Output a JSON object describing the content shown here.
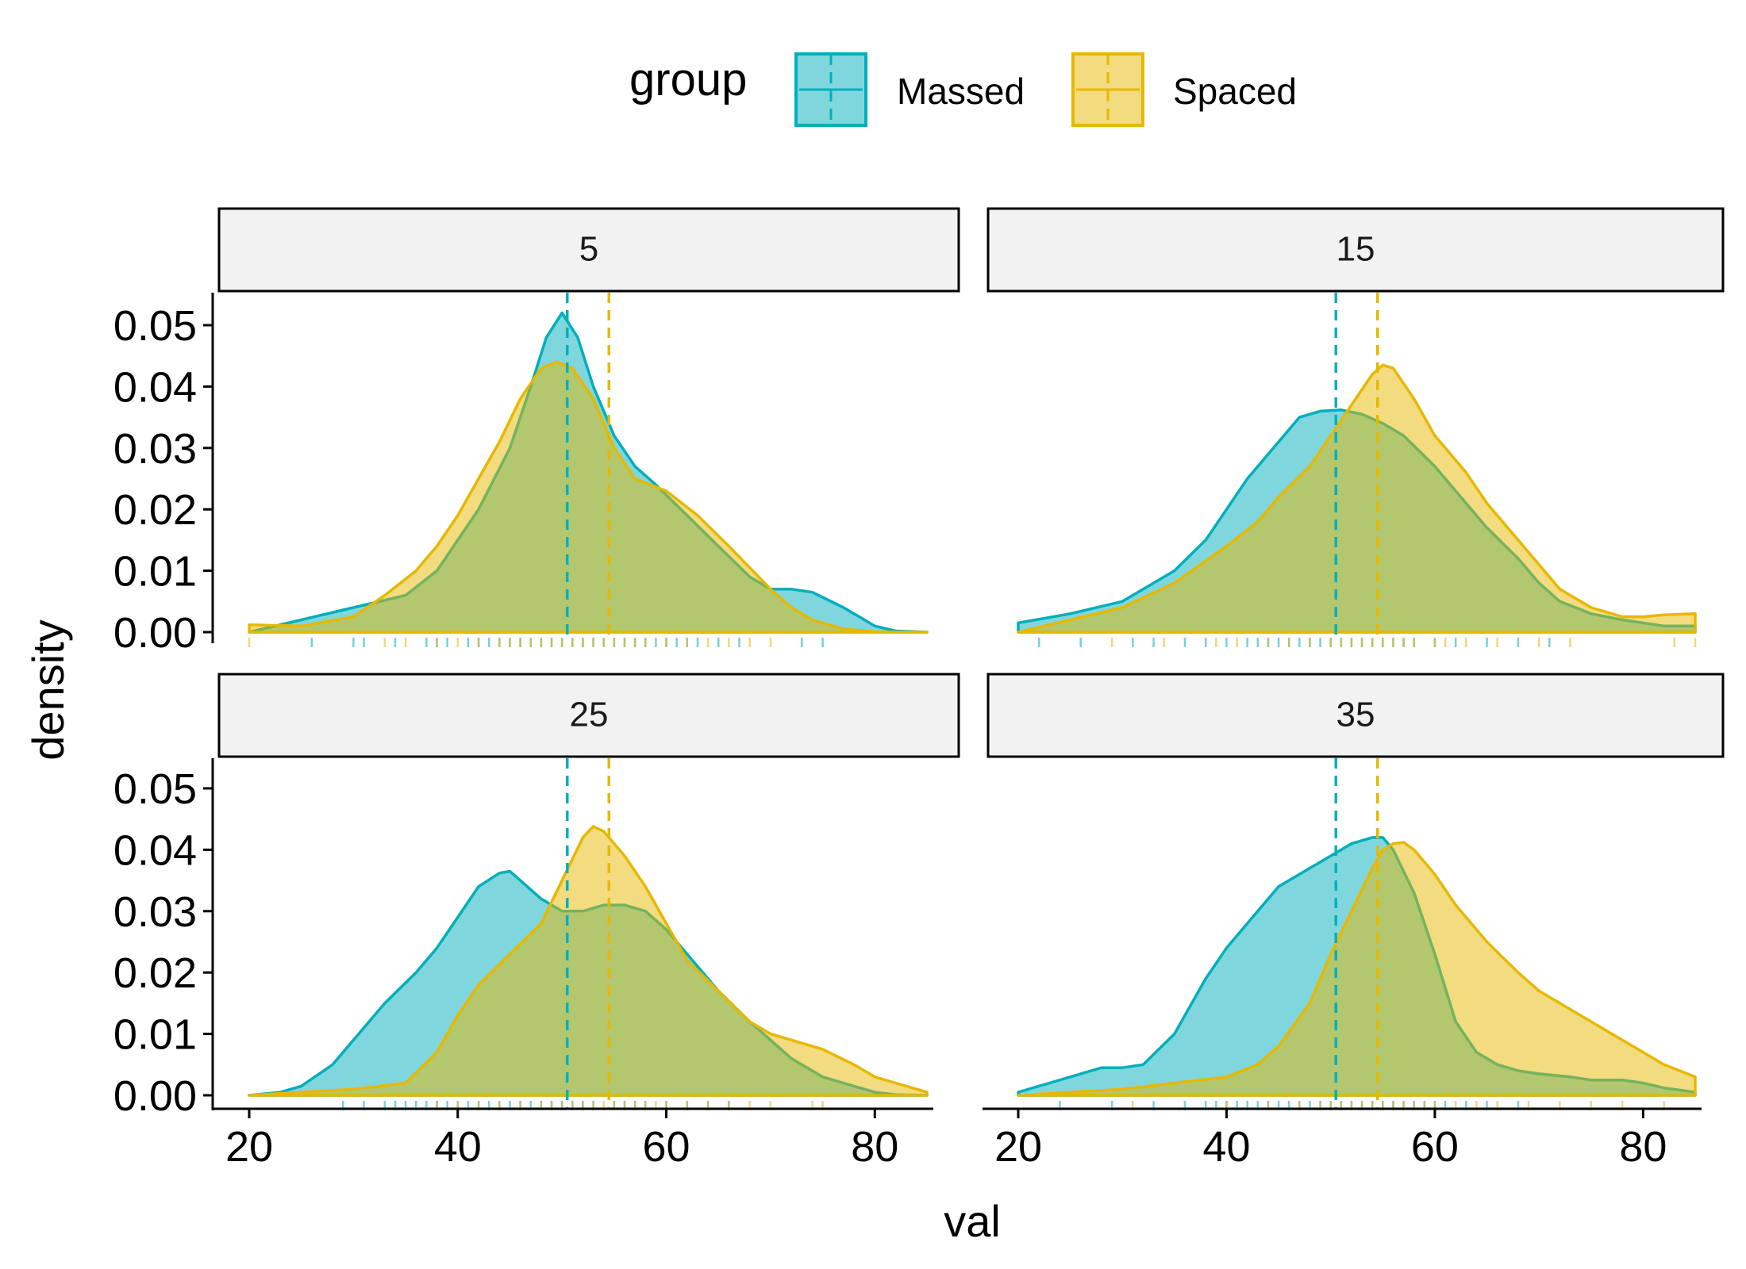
{
  "colors": {
    "massed": "#00AFBB",
    "spaced": "#E7B800",
    "strip_bg": "#F2F2F2",
    "axis": "#000000"
  },
  "chart_data": {
    "type": "area",
    "subtype": "density with rug and mean lines",
    "xlabel": "val",
    "ylabel": "density",
    "xlim": [
      20,
      85
    ],
    "ylim": [
      0,
      0.05
    ],
    "x_ticks": [
      20,
      40,
      60,
      80
    ],
    "y_ticks": [
      "0.00",
      "0.01",
      "0.02",
      "0.03",
      "0.04",
      "0.05"
    ],
    "grid": false,
    "legend": {
      "title": "group",
      "position": "top",
      "entries": [
        "Massed",
        "Spaced"
      ]
    },
    "facet_variable_levels": [
      "5",
      "15",
      "25",
      "35"
    ],
    "mean_lines": {
      "Massed": 50.5,
      "Spaced": 54.5
    },
    "panels": [
      {
        "label": "5",
        "series": [
          {
            "name": "Massed",
            "x": [
              20,
              25,
              30,
              35,
              38,
              40,
              42,
              45,
              47,
              48.5,
              50,
              51.5,
              53,
              55,
              57,
              59,
              62,
              65,
              68,
              70,
              72,
              74,
              77,
              80,
              82,
              85
            ],
            "density": [
              0.0,
              0.002,
              0.004,
              0.006,
              0.01,
              0.015,
              0.02,
              0.03,
              0.04,
              0.048,
              0.052,
              0.048,
              0.04,
              0.032,
              0.027,
              0.024,
              0.019,
              0.014,
              0.009,
              0.007,
              0.007,
              0.0065,
              0.004,
              0.001,
              0.0002,
              0.0
            ]
          },
          {
            "name": "Spaced",
            "x": [
              20,
              25,
              30,
              33,
              36,
              38,
              40,
              42,
              44,
              46,
              48,
              49.5,
              51,
              53,
              55,
              57,
              60,
              63,
              66,
              70,
              72,
              74,
              77,
              80,
              82,
              85
            ],
            "density": [
              0.0012,
              0.001,
              0.0025,
              0.006,
              0.01,
              0.014,
              0.019,
              0.025,
              0.031,
              0.038,
              0.043,
              0.044,
              0.043,
              0.038,
              0.03,
              0.025,
              0.023,
              0.019,
              0.014,
              0.007,
              0.004,
              0.002,
              0.0005,
              0.0001,
              0.0,
              0.0
            ]
          }
        ]
      },
      {
        "label": "15",
        "series": [
          {
            "name": "Massed",
            "x": [
              20,
              25,
              30,
              35,
              38,
              40,
              42,
              45,
              47,
              49,
              51,
              53,
              55,
              57,
              60,
              63,
              65,
              68,
              70,
              72,
              75,
              78,
              80,
              82,
              85
            ],
            "density": [
              0.0015,
              0.003,
              0.005,
              0.01,
              0.015,
              0.02,
              0.025,
              0.031,
              0.035,
              0.036,
              0.0362,
              0.0355,
              0.034,
              0.032,
              0.027,
              0.021,
              0.017,
              0.012,
              0.008,
              0.005,
              0.003,
              0.002,
              0.0015,
              0.001,
              0.001
            ]
          },
          {
            "name": "Spaced",
            "x": [
              20,
              25,
              30,
              35,
              40,
              43,
              45,
              48,
              50,
              52,
              54,
              55,
              56,
              58,
              60,
              63,
              65,
              68,
              70,
              72,
              75,
              78,
              80,
              82,
              85
            ],
            "density": [
              0.0,
              0.002,
              0.004,
              0.008,
              0.014,
              0.018,
              0.022,
              0.027,
              0.032,
              0.037,
              0.042,
              0.0435,
              0.043,
              0.038,
              0.032,
              0.026,
              0.021,
              0.015,
              0.011,
              0.007,
              0.004,
              0.0025,
              0.0025,
              0.0028,
              0.003
            ]
          }
        ]
      },
      {
        "label": "25",
        "series": [
          {
            "name": "Massed",
            "x": [
              20,
              23,
              25,
              28,
              30,
              33,
              36,
              38,
              40,
              42,
              44,
              45,
              46,
              48,
              50,
              52,
              54,
              56,
              58,
              60,
              62,
              65,
              68,
              70,
              72,
              75,
              78,
              80,
              82,
              85
            ],
            "density": [
              0.0,
              0.0005,
              0.0015,
              0.005,
              0.009,
              0.015,
              0.02,
              0.024,
              0.029,
              0.034,
              0.0362,
              0.0365,
              0.035,
              0.032,
              0.03,
              0.03,
              0.031,
              0.031,
              0.03,
              0.027,
              0.023,
              0.017,
              0.012,
              0.009,
              0.006,
              0.003,
              0.0015,
              0.0005,
              0.0001,
              0.0
            ]
          },
          {
            "name": "Spaced",
            "x": [
              20,
              25,
              30,
              35,
              38,
              40,
              42,
              45,
              48,
              50,
              52,
              53,
              54,
              56,
              58,
              60,
              62,
              65,
              68,
              70,
              72,
              75,
              78,
              80,
              82,
              85
            ],
            "density": [
              0.0,
              0.0005,
              0.001,
              0.002,
              0.007,
              0.013,
              0.018,
              0.023,
              0.028,
              0.035,
              0.042,
              0.0438,
              0.043,
              0.039,
              0.034,
              0.028,
              0.022,
              0.017,
              0.012,
              0.01,
              0.009,
              0.0075,
              0.005,
              0.003,
              0.002,
              0.0005
            ]
          }
        ]
      },
      {
        "label": "35",
        "series": [
          {
            "name": "Massed",
            "x": [
              20,
              23,
              25,
              28,
              30,
              32,
              35,
              38,
              40,
              43,
              45,
              48,
              50,
              52,
              54,
              55,
              56,
              58,
              60,
              62,
              64,
              66,
              68,
              70,
              73,
              75,
              78,
              80,
              82,
              85
            ],
            "density": [
              0.0005,
              0.002,
              0.003,
              0.0045,
              0.0045,
              0.005,
              0.01,
              0.019,
              0.024,
              0.03,
              0.034,
              0.037,
              0.039,
              0.041,
              0.042,
              0.042,
              0.04,
              0.033,
              0.023,
              0.012,
              0.007,
              0.005,
              0.004,
              0.0035,
              0.003,
              0.0025,
              0.0025,
              0.002,
              0.0012,
              0.0005
            ]
          },
          {
            "name": "Spaced",
            "x": [
              20,
              25,
              30,
              35,
              40,
              43,
              45,
              48,
              50,
              52,
              54,
              55,
              56,
              57,
              58,
              60,
              62,
              65,
              68,
              70,
              72,
              75,
              78,
              80,
              82,
              85
            ],
            "density": [
              0.0,
              0.0005,
              0.001,
              0.002,
              0.003,
              0.005,
              0.008,
              0.015,
              0.023,
              0.03,
              0.037,
              0.04,
              0.041,
              0.0412,
              0.04,
              0.036,
              0.031,
              0.025,
              0.02,
              0.017,
              0.015,
              0.012,
              0.009,
              0.007,
              0.005,
              0.003
            ]
          }
        ]
      }
    ],
    "rug": [
      {
        "Massed": [
          26,
          30,
          31,
          34,
          37,
          38,
          39,
          41,
          42,
          43,
          44,
          45,
          46,
          47,
          48,
          49,
          50,
          51,
          52,
          53,
          54,
          55,
          56,
          57,
          58,
          59,
          60,
          61,
          62,
          63,
          65,
          67,
          73,
          75
        ],
        "Spaced": [
          20,
          33,
          35,
          38,
          40,
          42,
          44,
          45,
          46,
          47,
          48,
          49,
          50,
          51,
          52,
          53,
          54,
          55,
          56,
          57,
          58,
          60,
          62,
          64,
          66,
          68,
          70
        ]
      },
      {
        "Massed": [
          22,
          26,
          31,
          33,
          36,
          38,
          40,
          42,
          43,
          44,
          45,
          46,
          47,
          48,
          49,
          50,
          51,
          52,
          53,
          54,
          55,
          56,
          57,
          58,
          60,
          62,
          65,
          68,
          71
        ],
        "Spaced": [
          29,
          34,
          39,
          41,
          44,
          46,
          48,
          50,
          51,
          52,
          53,
          54,
          55,
          56,
          57,
          58,
          60,
          61,
          63,
          66,
          70,
          73,
          83,
          85
        ]
      },
      {
        "Massed": [
          29,
          31,
          33,
          34,
          35,
          36,
          37,
          38,
          39,
          40,
          41,
          42,
          43,
          44,
          45,
          46,
          47,
          48,
          49,
          50,
          51,
          52,
          53,
          55,
          56,
          57,
          58,
          60,
          62,
          64,
          66
        ],
        "Spaced": [
          38,
          40,
          42,
          44,
          46,
          48,
          49,
          50,
          51,
          52,
          53,
          54,
          55,
          56,
          57,
          58,
          59,
          60,
          62,
          64,
          66,
          68,
          70,
          74,
          75
        ]
      },
      {
        "Massed": [
          24,
          29,
          33,
          36,
          38,
          39,
          40,
          41,
          42,
          43,
          44,
          45,
          46,
          47,
          48,
          49,
          50,
          51,
          52,
          53,
          54,
          55,
          56,
          57,
          58,
          59,
          60,
          61,
          63,
          65,
          68
        ],
        "Spaced": [
          31,
          40,
          44,
          47,
          49,
          50,
          51,
          52,
          53,
          54,
          55,
          56,
          57,
          58,
          59,
          60,
          62,
          64,
          66,
          69,
          72,
          75,
          78,
          82
        ]
      }
    ]
  }
}
